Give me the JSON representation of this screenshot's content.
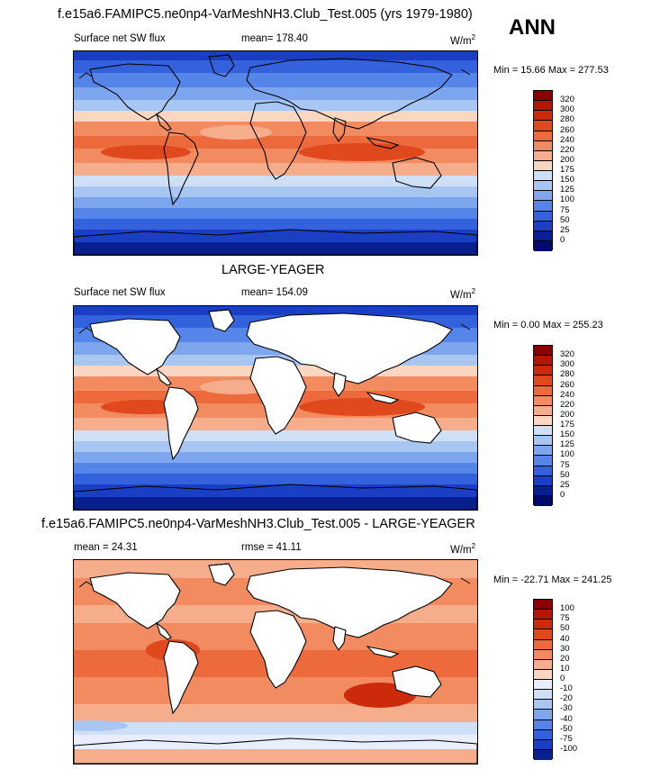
{
  "header": {
    "title": "f.e15a6.FAMIPC5.ne0np4-VarMeshNH3.Club_Test.005 (yrs 1979-1980)",
    "season": "ANN"
  },
  "panels": [
    {
      "heading": "",
      "variable": "Surface net SW flux",
      "stat": "mean= 178.40",
      "units": "W/m",
      "units_sup": "2",
      "minmax": "Min =  15.66 Max = 277.53",
      "scale": "abs",
      "land_masked": false,
      "colorbar_labels": [
        "320",
        "300",
        "280",
        "260",
        "240",
        "220",
        "200",
        "175",
        "150",
        "125",
        "100",
        "75",
        "50",
        "25",
        "0"
      ]
    },
    {
      "heading": "LARGE-YEAGER",
      "variable": "Surface net SW flux",
      "stat": "mean= 154.09",
      "units": "W/m",
      "units_sup": "2",
      "minmax": "Min =   0.00 Max = 255.23",
      "scale": "abs",
      "land_masked": true,
      "colorbar_labels": [
        "320",
        "300",
        "280",
        "260",
        "240",
        "220",
        "200",
        "175",
        "150",
        "125",
        "100",
        "75",
        "50",
        "25",
        "0"
      ]
    },
    {
      "heading": "f.e15a6.FAMIPC5.ne0np4-VarMeshNH3.Club_Test.005 - LARGE-YEAGER",
      "variable": "mean =  24.31",
      "stat": "rmse =  41.11",
      "units": "W/m",
      "units_sup": "2",
      "minmax": "Min = -22.71 Max = 241.25",
      "scale": "diff",
      "land_masked": true,
      "colorbar_labels": [
        "100",
        "75",
        "50",
        "40",
        "30",
        "20",
        "10",
        "0",
        "-10",
        "-20",
        "-30",
        "-40",
        "-50",
        "-75",
        "-100"
      ]
    }
  ],
  "colors": {
    "abs_scale": [
      "#8b0000",
      "#b21800",
      "#cc2a0a",
      "#e0481e",
      "#ec6a3c",
      "#f28b5f",
      "#f6ad8c",
      "#fbd7c2",
      "#cfe0f6",
      "#a8c6f2",
      "#7ea6ee",
      "#5585e8",
      "#3362dc",
      "#1a3fc4",
      "#08208f",
      "#000a6b"
    ],
    "diff_scale": [
      "#8b0000",
      "#b21800",
      "#cc2a0a",
      "#e0481e",
      "#ec6a3c",
      "#f28b5f",
      "#f6ad8c",
      "#fbd7c2",
      "#e8eefb",
      "#cfe0f6",
      "#a8c6f2",
      "#7ea6ee",
      "#5585e8",
      "#3362dc",
      "#1a3fc4",
      "#08208f"
    ],
    "land": "#ffffff",
    "coast": "#000000"
  }
}
